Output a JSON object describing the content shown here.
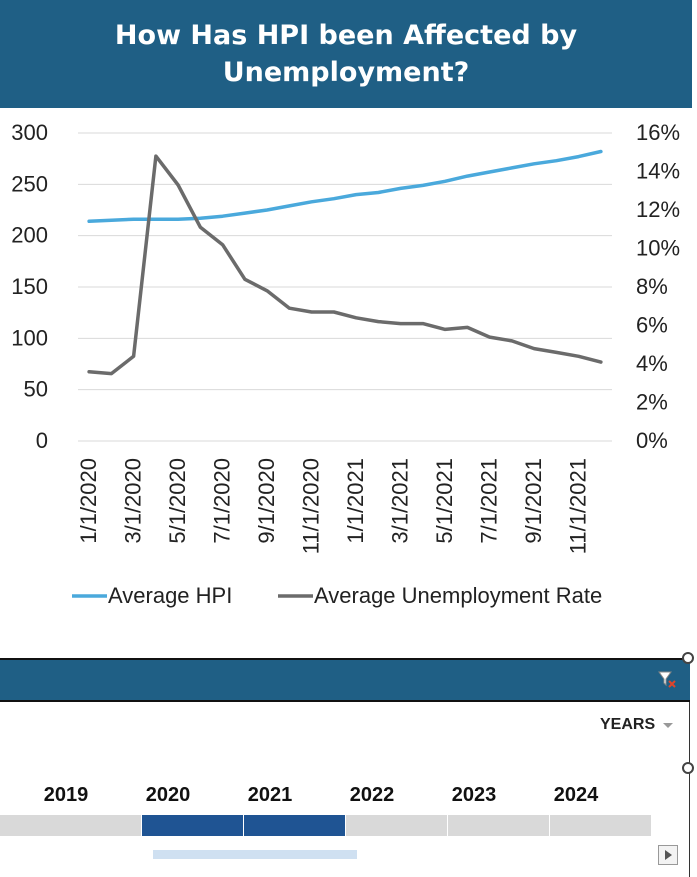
{
  "chart_data": {
    "type": "line",
    "title": "How Has HPI been Affected by Unemployment?",
    "categories": [
      "1/1/2020",
      "2/1/2020",
      "3/1/2020",
      "4/1/2020",
      "5/1/2020",
      "6/1/2020",
      "7/1/2020",
      "8/1/2020",
      "9/1/2020",
      "10/1/2020",
      "11/1/2020",
      "12/1/2020",
      "1/1/2021",
      "2/1/2021",
      "3/1/2021",
      "4/1/2021",
      "5/1/2021",
      "6/1/2021",
      "7/1/2021",
      "8/1/2021",
      "9/1/2021",
      "10/1/2021",
      "11/1/2021",
      "12/1/2021"
    ],
    "x_tick_labels": [
      "1/1/2020",
      "3/1/2020",
      "5/1/2020",
      "7/1/2020",
      "9/1/2020",
      "11/1/2020",
      "1/1/2021",
      "3/1/2021",
      "5/1/2021",
      "7/1/2021",
      "9/1/2021",
      "11/1/2021"
    ],
    "series": [
      {
        "name": "Average HPI",
        "axis": "left",
        "color": "#4aa9dc",
        "values": [
          214,
          215,
          216,
          216,
          216,
          217,
          219,
          222,
          225,
          229,
          233,
          236,
          240,
          242,
          246,
          249,
          253,
          258,
          262,
          266,
          270,
          273,
          277,
          282
        ]
      },
      {
        "name": "Average Unemployment Rate",
        "axis": "right",
        "color": "#6b6b6b",
        "values": [
          3.6,
          3.5,
          4.4,
          14.8,
          13.3,
          11.1,
          10.2,
          8.4,
          7.8,
          6.9,
          6.7,
          6.7,
          6.4,
          6.2,
          6.1,
          6.1,
          5.8,
          5.9,
          5.4,
          5.2,
          4.8,
          4.6,
          4.4,
          4.1
        ]
      }
    ],
    "y_left": {
      "min": 0,
      "max": 300,
      "ticks": [
        "0",
        "50",
        "100",
        "150",
        "200",
        "250",
        "300"
      ]
    },
    "y_right": {
      "min": 0,
      "max": 16,
      "ticks": [
        "0%",
        "2%",
        "4%",
        "6%",
        "8%",
        "10%",
        "12%",
        "14%",
        "16%"
      ]
    },
    "grid": true,
    "legend_position": "bottom"
  },
  "timeline": {
    "level_label": "YEARS",
    "years": [
      "2019",
      "2020",
      "2021",
      "2022",
      "2023",
      "2024"
    ],
    "selected_years": [
      "2020",
      "2021"
    ],
    "colors": {
      "header": "#1f5f85",
      "selected": "#1f5493",
      "unselected": "#d9d9d9"
    }
  }
}
